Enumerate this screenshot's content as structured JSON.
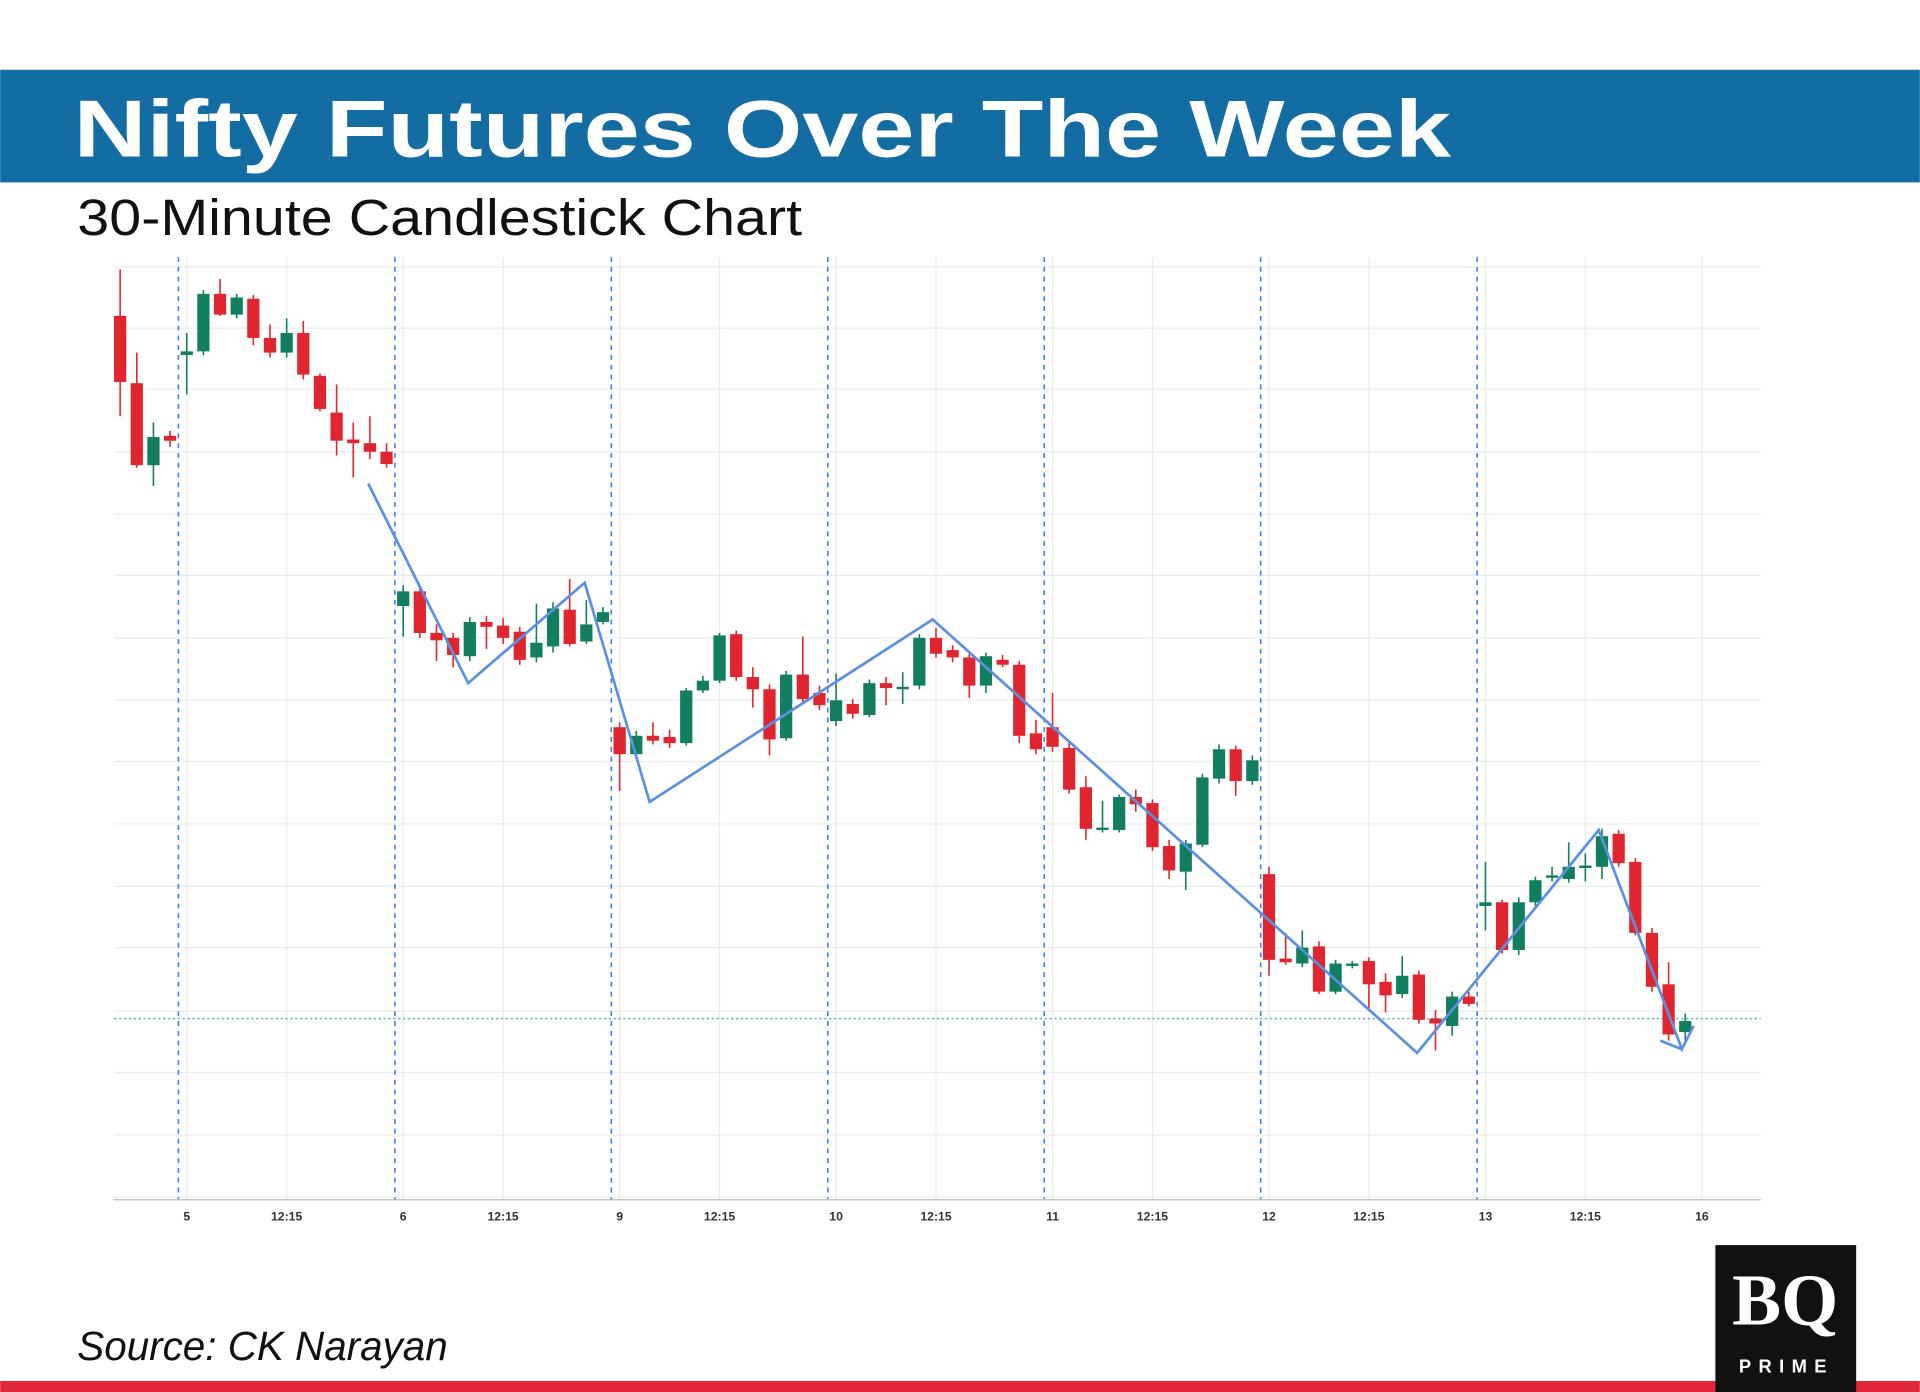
{
  "chart_data": {
    "type": "candlestick",
    "title": "Nifty Futures Over The Week",
    "subtitle": "30-Minute Candlestick Chart",
    "source": "Source: CK Narayan",
    "categories": [
      null,
      null,
      null,
      null,
      "5",
      null,
      null,
      null,
      null,
      null,
      "12:15",
      null,
      null,
      null,
      null,
      null,
      null,
      "6",
      null,
      null,
      null,
      null,
      null,
      "12:15",
      null,
      null,
      null,
      null,
      null,
      null,
      "9",
      null,
      null,
      null,
      null,
      null,
      "12:15",
      null,
      null,
      null,
      null,
      null,
      null,
      "10",
      null,
      null,
      null,
      null,
      null,
      "12:15",
      null,
      null,
      null,
      null,
      null,
      null,
      "11",
      null,
      null,
      null,
      null,
      null,
      "12:15",
      null,
      null,
      null,
      null,
      null,
      null,
      "12",
      null,
      null,
      null,
      null,
      null,
      "12:15",
      null,
      null,
      null,
      null,
      null,
      null,
      "13",
      null,
      null,
      null,
      null,
      null,
      "12:15",
      null,
      null,
      null,
      null,
      null,
      null,
      "16"
    ],
    "open": [
      742,
      687,
      620,
      644,
      710,
      713,
      760,
      743,
      756,
      724,
      712,
      728,
      693,
      663,
      641,
      638,
      631,
      505,
      517,
      483,
      479,
      464,
      492,
      489,
      484,
      463,
      472,
      502,
      476,
      492,
      406,
      384,
      399,
      398,
      393,
      436,
      444,
      482,
      447,
      437,
      397,
      449,
      434,
      411,
      425,
      416,
      442,
      437,
      440,
      479,
      469,
      463,
      440,
      461,
      457,
      401,
      406,
      389,
      357,
      322,
      322,
      349,
      344,
      309,
      288,
      310,
      364,
      388,
      362,
      286,
      217,
      213,
      227,
      190,
      211,
      215,
      198,
      188,
      204,
      168,
      162,
      186,
      260,
      263,
      224,
      263,
      283,
      282,
      291,
      292,
      319,
      296,
      238,
      196,
      157,
      null
    ],
    "high": [
      780,
      712,
      655,
      648,
      728,
      763,
      772,
      760,
      759,
      735,
      740,
      738,
      695,
      686,
      655,
      660,
      638,
      522,
      519,
      490,
      483,
      496,
      497,
      495,
      488,
      507,
      508,
      527,
      510,
      504,
      410,
      403,
      410,
      404,
      438,
      448,
      483,
      485,
      455,
      441,
      452,
      480,
      440,
      450,
      429,
      445,
      447,
      451,
      482,
      487,
      473,
      467,
      467,
      465,
      460,
      412,
      434,
      394,
      366,
      346,
      351,
      355,
      347,
      314,
      314,
      368,
      392,
      391,
      383,
      292,
      238,
      240,
      231,
      216,
      215,
      218,
      205,
      219,
      207,
      175,
      190,
      190,
      296,
      265,
      267,
      284,
      292,
      312,
      303,
      323,
      322,
      299,
      242,
      214,
      172,
      null
    ],
    "low": [
      660,
      618,
      603,
      635,
      678,
      710,
      742,
      740,
      718,
      708,
      708,
      690,
      664,
      628,
      610,
      625,
      618,
      480,
      479,
      460,
      455,
      460,
      470,
      474,
      457,
      459,
      467,
      472,
      474,
      490,
      354,
      382,
      392,
      389,
      391,
      434,
      442,
      444,
      422,
      383,
      395,
      426,
      420,
      407,
      413,
      414,
      424,
      425,
      437,
      463,
      459,
      430,
      434,
      455,
      393,
      384,
      386,
      352,
      314,
      320,
      320,
      337,
      305,
      282,
      273,
      308,
      360,
      350,
      359,
      203,
      212,
      210,
      188,
      188,
      209,
      174,
      173,
      185,
      164,
      142,
      154,
      178,
      240,
      221,
      220,
      260,
      280,
      279,
      280,
      282,
      292,
      236,
      190,
      150,
      150,
      null
    ],
    "close": [
      688,
      620,
      643,
      640,
      713,
      760,
      743,
      757,
      724,
      712,
      728,
      694,
      666,
      640,
      638,
      631,
      621,
      517,
      483,
      477,
      465,
      492,
      488,
      479,
      461,
      475,
      503,
      474,
      490,
      500,
      384,
      399,
      395,
      393,
      436,
      444,
      481,
      447,
      437,
      396,
      449,
      429,
      424,
      428,
      417,
      442,
      438,
      439,
      479,
      466,
      463,
      440,
      464,
      457,
      399,
      388,
      390,
      355,
      323,
      324,
      349,
      343,
      308,
      289,
      311,
      365,
      388,
      362,
      379,
      216,
      214,
      226,
      190,
      213,
      213,
      196,
      187,
      203,
      167,
      164,
      186,
      180,
      263,
      224,
      263,
      281,
      285,
      292,
      293,
      317,
      295,
      238,
      194,
      155,
      166,
      null
    ],
    "up_color": "#117e5f",
    "down_color": "#e0252e",
    "zigzag": {
      "color": "#5b8fe0",
      "x": [
        14.9,
        20.9,
        27.9,
        31.8,
        48.8,
        77.9,
        88.8,
        93.8,
        94.5,
        null,
        92.5,
        93.8
      ],
      "y": [
        605,
        442,
        524,
        345,
        494,
        140,
        322,
        143,
        162,
        null,
        150,
        143
      ]
    },
    "reference_line": {
      "value": 168,
      "color": "#6bbcb0"
    },
    "divider_color": "#3f7fe0",
    "ylim": [
      20,
      790
    ],
    "yticks": [
      22,
      73,
      124,
      174,
      226,
      276,
      327,
      378,
      428,
      479,
      530,
      580,
      631,
      682,
      732,
      782
    ],
    "grid": true
  },
  "logo": {
    "text": "BQ",
    "subtext": "PRIME"
  }
}
